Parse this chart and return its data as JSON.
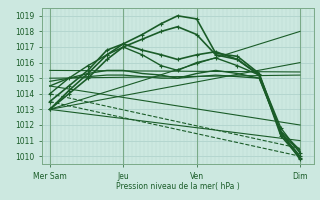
{
  "background_color": "#cce8e0",
  "grid_color_h": "#aacfc8",
  "grid_color_v": "#b8d8d0",
  "line_color": "#1a5c28",
  "xlabel": "Pression niveau de la mer( hPa )",
  "ylim": [
    1009.5,
    1019.5
  ],
  "yticks": [
    1010,
    1011,
    1012,
    1013,
    1014,
    1015,
    1016,
    1017,
    1018,
    1019
  ],
  "xlim": [
    0,
    1
  ],
  "day_labels": [
    "Mer Sam",
    "Jeu",
    "Ven",
    "Dim"
  ],
  "day_positions": [
    0.03,
    0.3,
    0.57,
    0.95
  ],
  "vline_color": "#7aaa88",
  "lines": [
    {
      "x": [
        0.03,
        0.1,
        0.17,
        0.24,
        0.3,
        0.37,
        0.44,
        0.5,
        0.57,
        0.64,
        0.72,
        0.8,
        0.88,
        0.95
      ],
      "y": [
        1013.0,
        1014.2,
        1015.3,
        1016.5,
        1017.2,
        1017.8,
        1018.5,
        1019.0,
        1018.8,
        1016.6,
        1016.4,
        1015.3,
        1011.5,
        1009.8
      ],
      "lw": 1.2,
      "ls": "-",
      "marker": "+"
    },
    {
      "x": [
        0.03,
        0.1,
        0.17,
        0.24,
        0.3,
        0.37,
        0.44,
        0.5,
        0.57,
        0.64,
        0.72,
        0.8,
        0.88,
        0.95
      ],
      "y": [
        1013.0,
        1014.0,
        1015.0,
        1016.2,
        1017.0,
        1017.5,
        1018.0,
        1018.3,
        1017.8,
        1016.5,
        1016.2,
        1015.2,
        1011.3,
        1009.9
      ],
      "lw": 1.2,
      "ls": "-",
      "marker": "+"
    },
    {
      "x": [
        0.03,
        0.1,
        0.17,
        0.24,
        0.3,
        0.37,
        0.44,
        0.5,
        0.57,
        0.64,
        0.72,
        0.8,
        0.88,
        0.95
      ],
      "y": [
        1013.5,
        1014.5,
        1015.5,
        1016.8,
        1017.2,
        1016.8,
        1016.5,
        1016.2,
        1016.5,
        1016.7,
        1016.2,
        1015.2,
        1011.5,
        1010.0
      ],
      "lw": 1.2,
      "ls": "-",
      "marker": "+"
    },
    {
      "x": [
        0.03,
        0.1,
        0.17,
        0.24,
        0.3,
        0.37,
        0.44,
        0.5,
        0.57,
        0.64,
        0.72,
        0.8,
        0.88,
        0.95
      ],
      "y": [
        1014.0,
        1015.0,
        1015.8,
        1016.5,
        1017.0,
        1016.5,
        1015.8,
        1015.5,
        1016.0,
        1016.3,
        1015.8,
        1015.2,
        1011.8,
        1010.2
      ],
      "lw": 1.0,
      "ls": "-",
      "marker": "+"
    },
    {
      "x": [
        0.03,
        0.1,
        0.17,
        0.24,
        0.3,
        0.37,
        0.44,
        0.5,
        0.57,
        0.64,
        0.72,
        0.8,
        0.88,
        0.95
      ],
      "y": [
        1014.5,
        1015.0,
        1015.3,
        1015.5,
        1015.5,
        1015.3,
        1015.2,
        1015.0,
        1015.3,
        1015.5,
        1015.3,
        1015.0,
        1011.5,
        1010.3
      ],
      "lw": 1.0,
      "ls": "-",
      "marker": null
    },
    {
      "x": [
        0.03,
        0.1,
        0.17,
        0.24,
        0.3,
        0.37,
        0.44,
        0.5,
        0.57,
        0.64,
        0.72,
        0.8,
        0.88,
        0.95
      ],
      "y": [
        1014.8,
        1015.0,
        1015.1,
        1015.2,
        1015.2,
        1015.1,
        1015.0,
        1015.0,
        1015.1,
        1015.2,
        1015.1,
        1015.0,
        1011.6,
        1010.4
      ],
      "lw": 0.9,
      "ls": "-",
      "marker": null
    },
    {
      "x": [
        0.03,
        0.95
      ],
      "y": [
        1013.0,
        1011.0
      ],
      "lw": 0.8,
      "ls": "-",
      "marker": null
    },
    {
      "x": [
        0.03,
        0.95
      ],
      "y": [
        1014.5,
        1012.0
      ],
      "lw": 0.8,
      "ls": "-",
      "marker": null
    },
    {
      "x": [
        0.03,
        0.95
      ],
      "y": [
        1014.0,
        1010.5
      ],
      "lw": 0.8,
      "ls": "--",
      "marker": null
    },
    {
      "x": [
        0.03,
        0.95
      ],
      "y": [
        1013.5,
        1010.0
      ],
      "lw": 0.8,
      "ls": "--",
      "marker": null
    },
    {
      "x": [
        0.03,
        0.95
      ],
      "y": [
        1015.0,
        1015.2
      ],
      "lw": 0.8,
      "ls": "-",
      "marker": null
    },
    {
      "x": [
        0.03,
        0.95
      ],
      "y": [
        1015.5,
        1015.4
      ],
      "lw": 0.8,
      "ls": "-",
      "marker": null
    },
    {
      "x": [
        0.03,
        0.95
      ],
      "y": [
        1013.0,
        1018.0
      ],
      "lw": 0.8,
      "ls": "-",
      "marker": null
    },
    {
      "x": [
        0.03,
        0.95
      ],
      "y": [
        1013.0,
        1016.0
      ],
      "lw": 0.8,
      "ls": "-",
      "marker": null
    }
  ]
}
